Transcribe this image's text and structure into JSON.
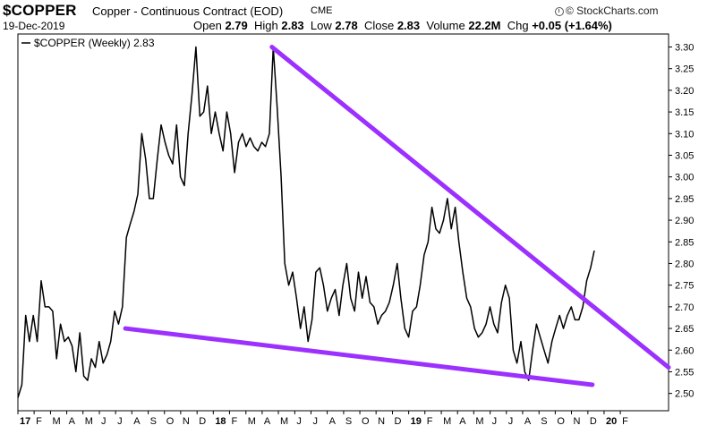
{
  "header": {
    "symbol": "$COPPER",
    "description": "Copper - Continuous Contract (EOD)",
    "exchange": "CME",
    "date": "19-Dec-2019",
    "open_label": "Open",
    "open_value": "2.79",
    "high_label": "High",
    "high_value": "2.83",
    "low_label": "Low",
    "low_value": "2.78",
    "close_label": "Close",
    "close_value": "2.83",
    "volume_label": "Volume",
    "volume_value": "22.2M",
    "chg_label": "Chg",
    "chg_value": "+0.05 (+1.64%)",
    "credit": "© StockCharts.com"
  },
  "chart_data": {
    "type": "line",
    "legend": "$COPPER (Weekly) 2.83",
    "legend_position": "top-left",
    "y_axis_side": "right",
    "ylim": [
      2.46,
      3.33
    ],
    "xlim": [
      2017.0,
      2020.33
    ],
    "y_ticks": [
      "2.50",
      "2.55",
      "2.60",
      "2.65",
      "2.70",
      "2.75",
      "2.80",
      "2.85",
      "2.90",
      "2.95",
      "3.00",
      "3.05",
      "3.10",
      "3.15",
      "3.20",
      "3.25",
      "3.30"
    ],
    "x_ticks": [
      {
        "t": 2017.0,
        "label": "17"
      },
      {
        "t": 2017.083,
        "label": "F"
      },
      {
        "t": 2017.167,
        "label": "M"
      },
      {
        "t": 2017.25,
        "label": "A"
      },
      {
        "t": 2017.333,
        "label": "M"
      },
      {
        "t": 2017.417,
        "label": "J"
      },
      {
        "t": 2017.5,
        "label": "J"
      },
      {
        "t": 2017.583,
        "label": "A"
      },
      {
        "t": 2017.667,
        "label": "S"
      },
      {
        "t": 2017.75,
        "label": "O"
      },
      {
        "t": 2017.833,
        "label": "N"
      },
      {
        "t": 2017.917,
        "label": "D"
      },
      {
        "t": 2018.0,
        "label": "18"
      },
      {
        "t": 2018.083,
        "label": "F"
      },
      {
        "t": 2018.167,
        "label": "M"
      },
      {
        "t": 2018.25,
        "label": "A"
      },
      {
        "t": 2018.333,
        "label": "M"
      },
      {
        "t": 2018.417,
        "label": "J"
      },
      {
        "t": 2018.5,
        "label": "J"
      },
      {
        "t": 2018.583,
        "label": "A"
      },
      {
        "t": 2018.667,
        "label": "S"
      },
      {
        "t": 2018.75,
        "label": "O"
      },
      {
        "t": 2018.833,
        "label": "N"
      },
      {
        "t": 2018.917,
        "label": "D"
      },
      {
        "t": 2019.0,
        "label": "19"
      },
      {
        "t": 2019.083,
        "label": "F"
      },
      {
        "t": 2019.167,
        "label": "M"
      },
      {
        "t": 2019.25,
        "label": "A"
      },
      {
        "t": 2019.333,
        "label": "M"
      },
      {
        "t": 2019.417,
        "label": "J"
      },
      {
        "t": 2019.5,
        "label": "J"
      },
      {
        "t": 2019.583,
        "label": "A"
      },
      {
        "t": 2019.667,
        "label": "S"
      },
      {
        "t": 2019.75,
        "label": "O"
      },
      {
        "t": 2019.833,
        "label": "N"
      },
      {
        "t": 2019.917,
        "label": "D"
      },
      {
        "t": 2020.0,
        "label": "20"
      },
      {
        "t": 2020.083,
        "label": "F"
      }
    ],
    "series": [
      {
        "name": "$COPPER (Weekly)",
        "color": "#000000",
        "points": [
          [
            2017.0,
            2.49
          ],
          [
            2017.02,
            2.52
          ],
          [
            2017.04,
            2.68
          ],
          [
            2017.059,
            2.62
          ],
          [
            2017.079,
            2.68
          ],
          [
            2017.099,
            2.62
          ],
          [
            2017.119,
            2.76
          ],
          [
            2017.139,
            2.7
          ],
          [
            2017.159,
            2.7
          ],
          [
            2017.178,
            2.69
          ],
          [
            2017.198,
            2.58
          ],
          [
            2017.218,
            2.66
          ],
          [
            2017.238,
            2.62
          ],
          [
            2017.258,
            2.63
          ],
          [
            2017.277,
            2.61
          ],
          [
            2017.297,
            2.55
          ],
          [
            2017.317,
            2.64
          ],
          [
            2017.337,
            2.54
          ],
          [
            2017.357,
            2.53
          ],
          [
            2017.376,
            2.58
          ],
          [
            2017.396,
            2.56
          ],
          [
            2017.416,
            2.62
          ],
          [
            2017.436,
            2.57
          ],
          [
            2017.456,
            2.59
          ],
          [
            2017.475,
            2.62
          ],
          [
            2017.495,
            2.69
          ],
          [
            2017.515,
            2.66
          ],
          [
            2017.535,
            2.7
          ],
          [
            2017.555,
            2.86
          ],
          [
            2017.574,
            2.89
          ],
          [
            2017.594,
            2.92
          ],
          [
            2017.614,
            2.96
          ],
          [
            2017.634,
            3.1
          ],
          [
            2017.654,
            3.04
          ],
          [
            2017.673,
            2.95
          ],
          [
            2017.693,
            2.95
          ],
          [
            2017.713,
            3.04
          ],
          [
            2017.733,
            3.12
          ],
          [
            2017.753,
            3.08
          ],
          [
            2017.772,
            3.05
          ],
          [
            2017.792,
            3.03
          ],
          [
            2017.812,
            3.12
          ],
          [
            2017.832,
            3.0
          ],
          [
            2017.852,
            2.98
          ],
          [
            2017.871,
            3.1
          ],
          [
            2017.891,
            3.19
          ],
          [
            2017.911,
            3.3
          ],
          [
            2017.931,
            3.14
          ],
          [
            2017.951,
            3.15
          ],
          [
            2017.97,
            3.21
          ],
          [
            2017.99,
            3.1
          ],
          [
            2018.01,
            3.15
          ],
          [
            2018.03,
            3.1
          ],
          [
            2018.05,
            3.06
          ],
          [
            2018.069,
            3.15
          ],
          [
            2018.089,
            3.1
          ],
          [
            2018.109,
            3.01
          ],
          [
            2018.129,
            3.08
          ],
          [
            2018.149,
            3.1
          ],
          [
            2018.168,
            3.07
          ],
          [
            2018.188,
            3.09
          ],
          [
            2018.208,
            3.07
          ],
          [
            2018.228,
            3.06
          ],
          [
            2018.248,
            3.08
          ],
          [
            2018.267,
            3.07
          ],
          [
            2018.287,
            3.1
          ],
          [
            2018.307,
            3.3
          ],
          [
            2018.327,
            3.16
          ],
          [
            2018.347,
            3.0
          ],
          [
            2018.366,
            2.8
          ],
          [
            2018.386,
            2.75
          ],
          [
            2018.406,
            2.78
          ],
          [
            2018.426,
            2.72
          ],
          [
            2018.446,
            2.65
          ],
          [
            2018.465,
            2.7
          ],
          [
            2018.485,
            2.62
          ],
          [
            2018.505,
            2.67
          ],
          [
            2018.525,
            2.78
          ],
          [
            2018.545,
            2.79
          ],
          [
            2018.564,
            2.75
          ],
          [
            2018.584,
            2.69
          ],
          [
            2018.604,
            2.72
          ],
          [
            2018.624,
            2.74
          ],
          [
            2018.644,
            2.68
          ],
          [
            2018.663,
            2.75
          ],
          [
            2018.683,
            2.8
          ],
          [
            2018.703,
            2.72
          ],
          [
            2018.723,
            2.69
          ],
          [
            2018.743,
            2.78
          ],
          [
            2018.762,
            2.72
          ],
          [
            2018.782,
            2.77
          ],
          [
            2018.802,
            2.71
          ],
          [
            2018.822,
            2.7
          ],
          [
            2018.842,
            2.66
          ],
          [
            2018.861,
            2.68
          ],
          [
            2018.881,
            2.69
          ],
          [
            2018.901,
            2.71
          ],
          [
            2018.921,
            2.75
          ],
          [
            2018.941,
            2.8
          ],
          [
            2018.96,
            2.72
          ],
          [
            2018.98,
            2.65
          ],
          [
            2019.0,
            2.63
          ],
          [
            2019.02,
            2.69
          ],
          [
            2019.04,
            2.7
          ],
          [
            2019.059,
            2.75
          ],
          [
            2019.079,
            2.82
          ],
          [
            2019.099,
            2.85
          ],
          [
            2019.119,
            2.93
          ],
          [
            2019.139,
            2.88
          ],
          [
            2019.158,
            2.87
          ],
          [
            2019.178,
            2.9
          ],
          [
            2019.198,
            2.95
          ],
          [
            2019.218,
            2.88
          ],
          [
            2019.238,
            2.93
          ],
          [
            2019.257,
            2.85
          ],
          [
            2019.277,
            2.78
          ],
          [
            2019.297,
            2.72
          ],
          [
            2019.317,
            2.7
          ],
          [
            2019.337,
            2.65
          ],
          [
            2019.356,
            2.63
          ],
          [
            2019.376,
            2.64
          ],
          [
            2019.396,
            2.66
          ],
          [
            2019.416,
            2.7
          ],
          [
            2019.436,
            2.66
          ],
          [
            2019.455,
            2.64
          ],
          [
            2019.475,
            2.71
          ],
          [
            2019.495,
            2.75
          ],
          [
            2019.515,
            2.72
          ],
          [
            2019.535,
            2.6
          ],
          [
            2019.554,
            2.57
          ],
          [
            2019.574,
            2.62
          ],
          [
            2019.594,
            2.55
          ],
          [
            2019.614,
            2.53
          ],
          [
            2019.634,
            2.6
          ],
          [
            2019.654,
            2.66
          ],
          [
            2019.673,
            2.63
          ],
          [
            2019.693,
            2.6
          ],
          [
            2019.713,
            2.57
          ],
          [
            2019.733,
            2.62
          ],
          [
            2019.752,
            2.65
          ],
          [
            2019.772,
            2.68
          ],
          [
            2019.792,
            2.65
          ],
          [
            2019.812,
            2.68
          ],
          [
            2019.832,
            2.7
          ],
          [
            2019.851,
            2.67
          ],
          [
            2019.871,
            2.67
          ],
          [
            2019.891,
            2.7
          ],
          [
            2019.911,
            2.76
          ],
          [
            2019.931,
            2.79
          ],
          [
            2019.95,
            2.83
          ]
        ]
      }
    ],
    "annotations": [
      {
        "type": "trendline",
        "color": "#9b30ff",
        "from": [
          2017.55,
          2.65
        ],
        "to": [
          2019.94,
          2.52
        ]
      },
      {
        "type": "trendline",
        "color": "#9b30ff",
        "from": [
          2018.3,
          3.3
        ],
        "to": [
          2020.33,
          2.56
        ]
      }
    ]
  }
}
